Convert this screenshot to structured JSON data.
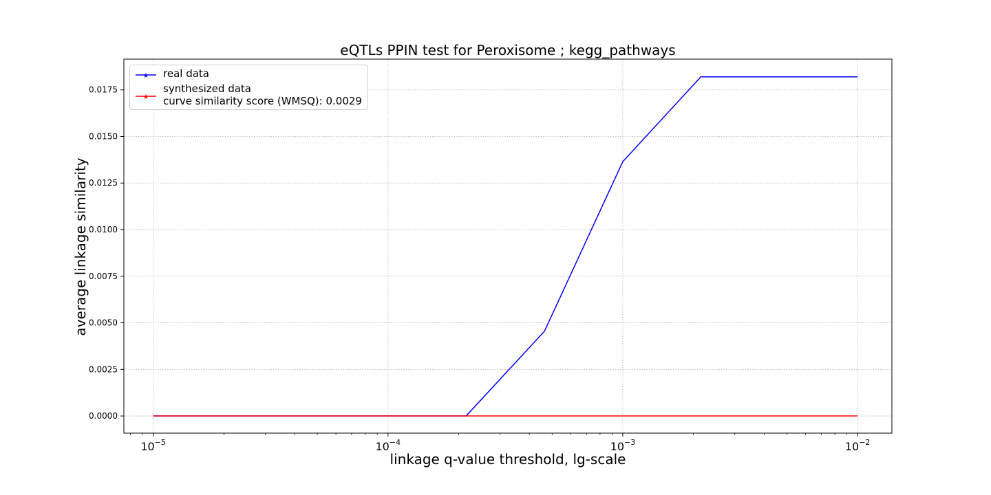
{
  "chart_data": {
    "type": "line",
    "title": "eQTLs PPIN test for Peroxisome ; kegg_pathways",
    "xlabel": "linkage q-value threshold, lg-scale",
    "ylabel": "average linkage similarity",
    "xscale": "log",
    "xlim": [
      7.5e-06,
      0.014
    ],
    "ylim": [
      -0.00092,
      0.01915
    ],
    "grid": true,
    "legend_position": "top-left",
    "x_ticks": [
      {
        "value": 1e-05,
        "base": "10",
        "exp": "−5"
      },
      {
        "value": 0.0001,
        "base": "10",
        "exp": "−4"
      },
      {
        "value": 0.001,
        "base": "10",
        "exp": "−3"
      },
      {
        "value": 0.01,
        "base": "10",
        "exp": "−2"
      }
    ],
    "y_ticks": [
      "0.0000",
      "0.0025",
      "0.0050",
      "0.0075",
      "0.0100",
      "0.0125",
      "0.0150",
      "0.0175"
    ],
    "x": [
      1e-05,
      2.15e-05,
      4.64e-05,
      0.0001,
      0.000215,
      0.000464,
      0.001,
      0.00215,
      0.00464,
      0.01
    ],
    "series": [
      {
        "name": "real data",
        "color": "#0000ff",
        "values": [
          0,
          0,
          0,
          0,
          0,
          0.00455,
          0.01365,
          0.0182,
          0.0182,
          0.0182
        ]
      },
      {
        "name": "synthesized data",
        "extra_label": "curve similarity score (WMSQ): 0.0029",
        "color": "#ff0000",
        "values": [
          0,
          0,
          0,
          0,
          0,
          0,
          0,
          0,
          0,
          0
        ]
      }
    ]
  }
}
